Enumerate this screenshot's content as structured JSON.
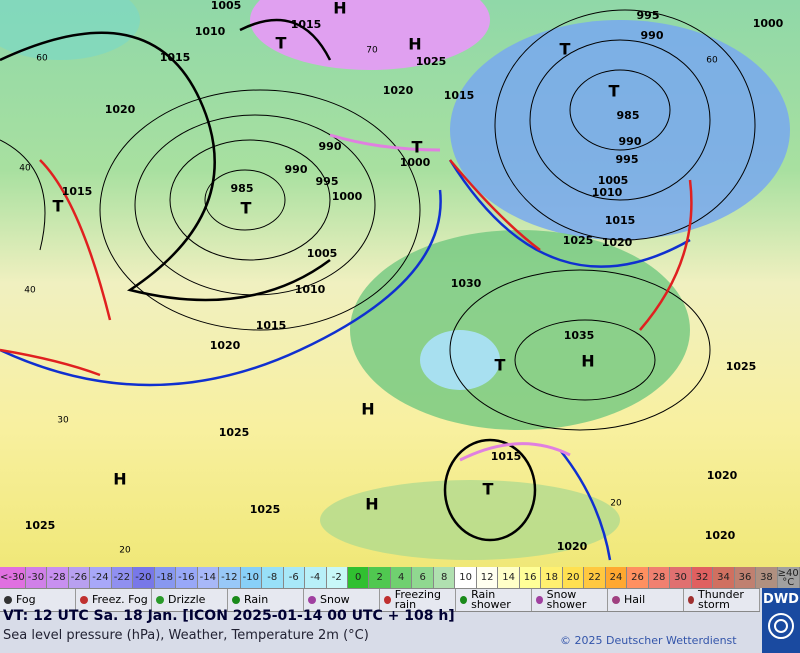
{
  "map": {
    "pressure_labels": [
      "1005",
      "1010",
      "1015",
      "1015",
      "1020",
      "1015",
      "1025",
      "1020",
      "1015",
      "995",
      "990",
      "1000",
      "985",
      "990",
      "995",
      "1005",
      "1010",
      "1015",
      "1020",
      "1025",
      "990",
      "1000",
      "985",
      "990",
      "995",
      "1000",
      "1005",
      "1010",
      "1015",
      "1020",
      "1030",
      "1035",
      "1025",
      "1025",
      "1015",
      "1025",
      "1025",
      "1020",
      "1020",
      "1020"
    ],
    "lows": [
      "T",
      "T",
      "T",
      "T",
      "T",
      "T",
      "T",
      "T"
    ],
    "highs": [
      "H",
      "H",
      "H",
      "H",
      "H",
      "H"
    ],
    "temperature_labels": [
      "60",
      "70",
      "60",
      "40",
      "40",
      "30",
      "20",
      "20"
    ]
  },
  "temperature_scale": {
    "labels": [
      "<-30",
      -30,
      -28,
      -26,
      -24,
      -22,
      -20,
      -18,
      -16,
      -14,
      -12,
      -10,
      -8,
      -6,
      -4,
      -2,
      0,
      2,
      4,
      6,
      8,
      10,
      12,
      14,
      16,
      18,
      20,
      22,
      24,
      26,
      28,
      30,
      32,
      34,
      36,
      38,
      "≥40 °C"
    ],
    "colors": [
      "#e070e0",
      "#d080e8",
      "#c890f0",
      "#b8a0f0",
      "#a8a8f8",
      "#9090f0",
      "#7878e8",
      "#8898f0",
      "#98a8f8",
      "#a8b8f8",
      "#98c8f8",
      "#88d0f8",
      "#98e0f8",
      "#a8e8f8",
      "#b8f0f8",
      "#c8f8f8",
      "#30c030",
      "#50c850",
      "#70d070",
      "#90d890",
      "#b0e0b0",
      "#ffffff",
      "#fffff0",
      "#ffffc8",
      "#ffff98",
      "#fff070",
      "#ffe050",
      "#ffc840",
      "#ffa830",
      "#ff9060",
      "#f08070",
      "#e07070",
      "#e06060",
      "#d07060",
      "#c08070",
      "#b09080",
      "#a0a0a0"
    ]
  },
  "legend": [
    "Fog",
    "Freez. Fog",
    "Drizzle",
    "Rain",
    "Snow",
    "Freezing rain",
    "Rain shower",
    "Snow shower",
    "Hail",
    "Thunder storm"
  ],
  "footer": {
    "valid_time": "VT: 12 UTC Sa.  18 Jan. [ICON 2025-01-14  00 UTC + 108 h]",
    "description": "Sea level pressure (hPa), Weather, Temperature 2m (°C)",
    "copyright": "© 2025 Deutscher Wetterdienst",
    "logo": "DWD"
  }
}
